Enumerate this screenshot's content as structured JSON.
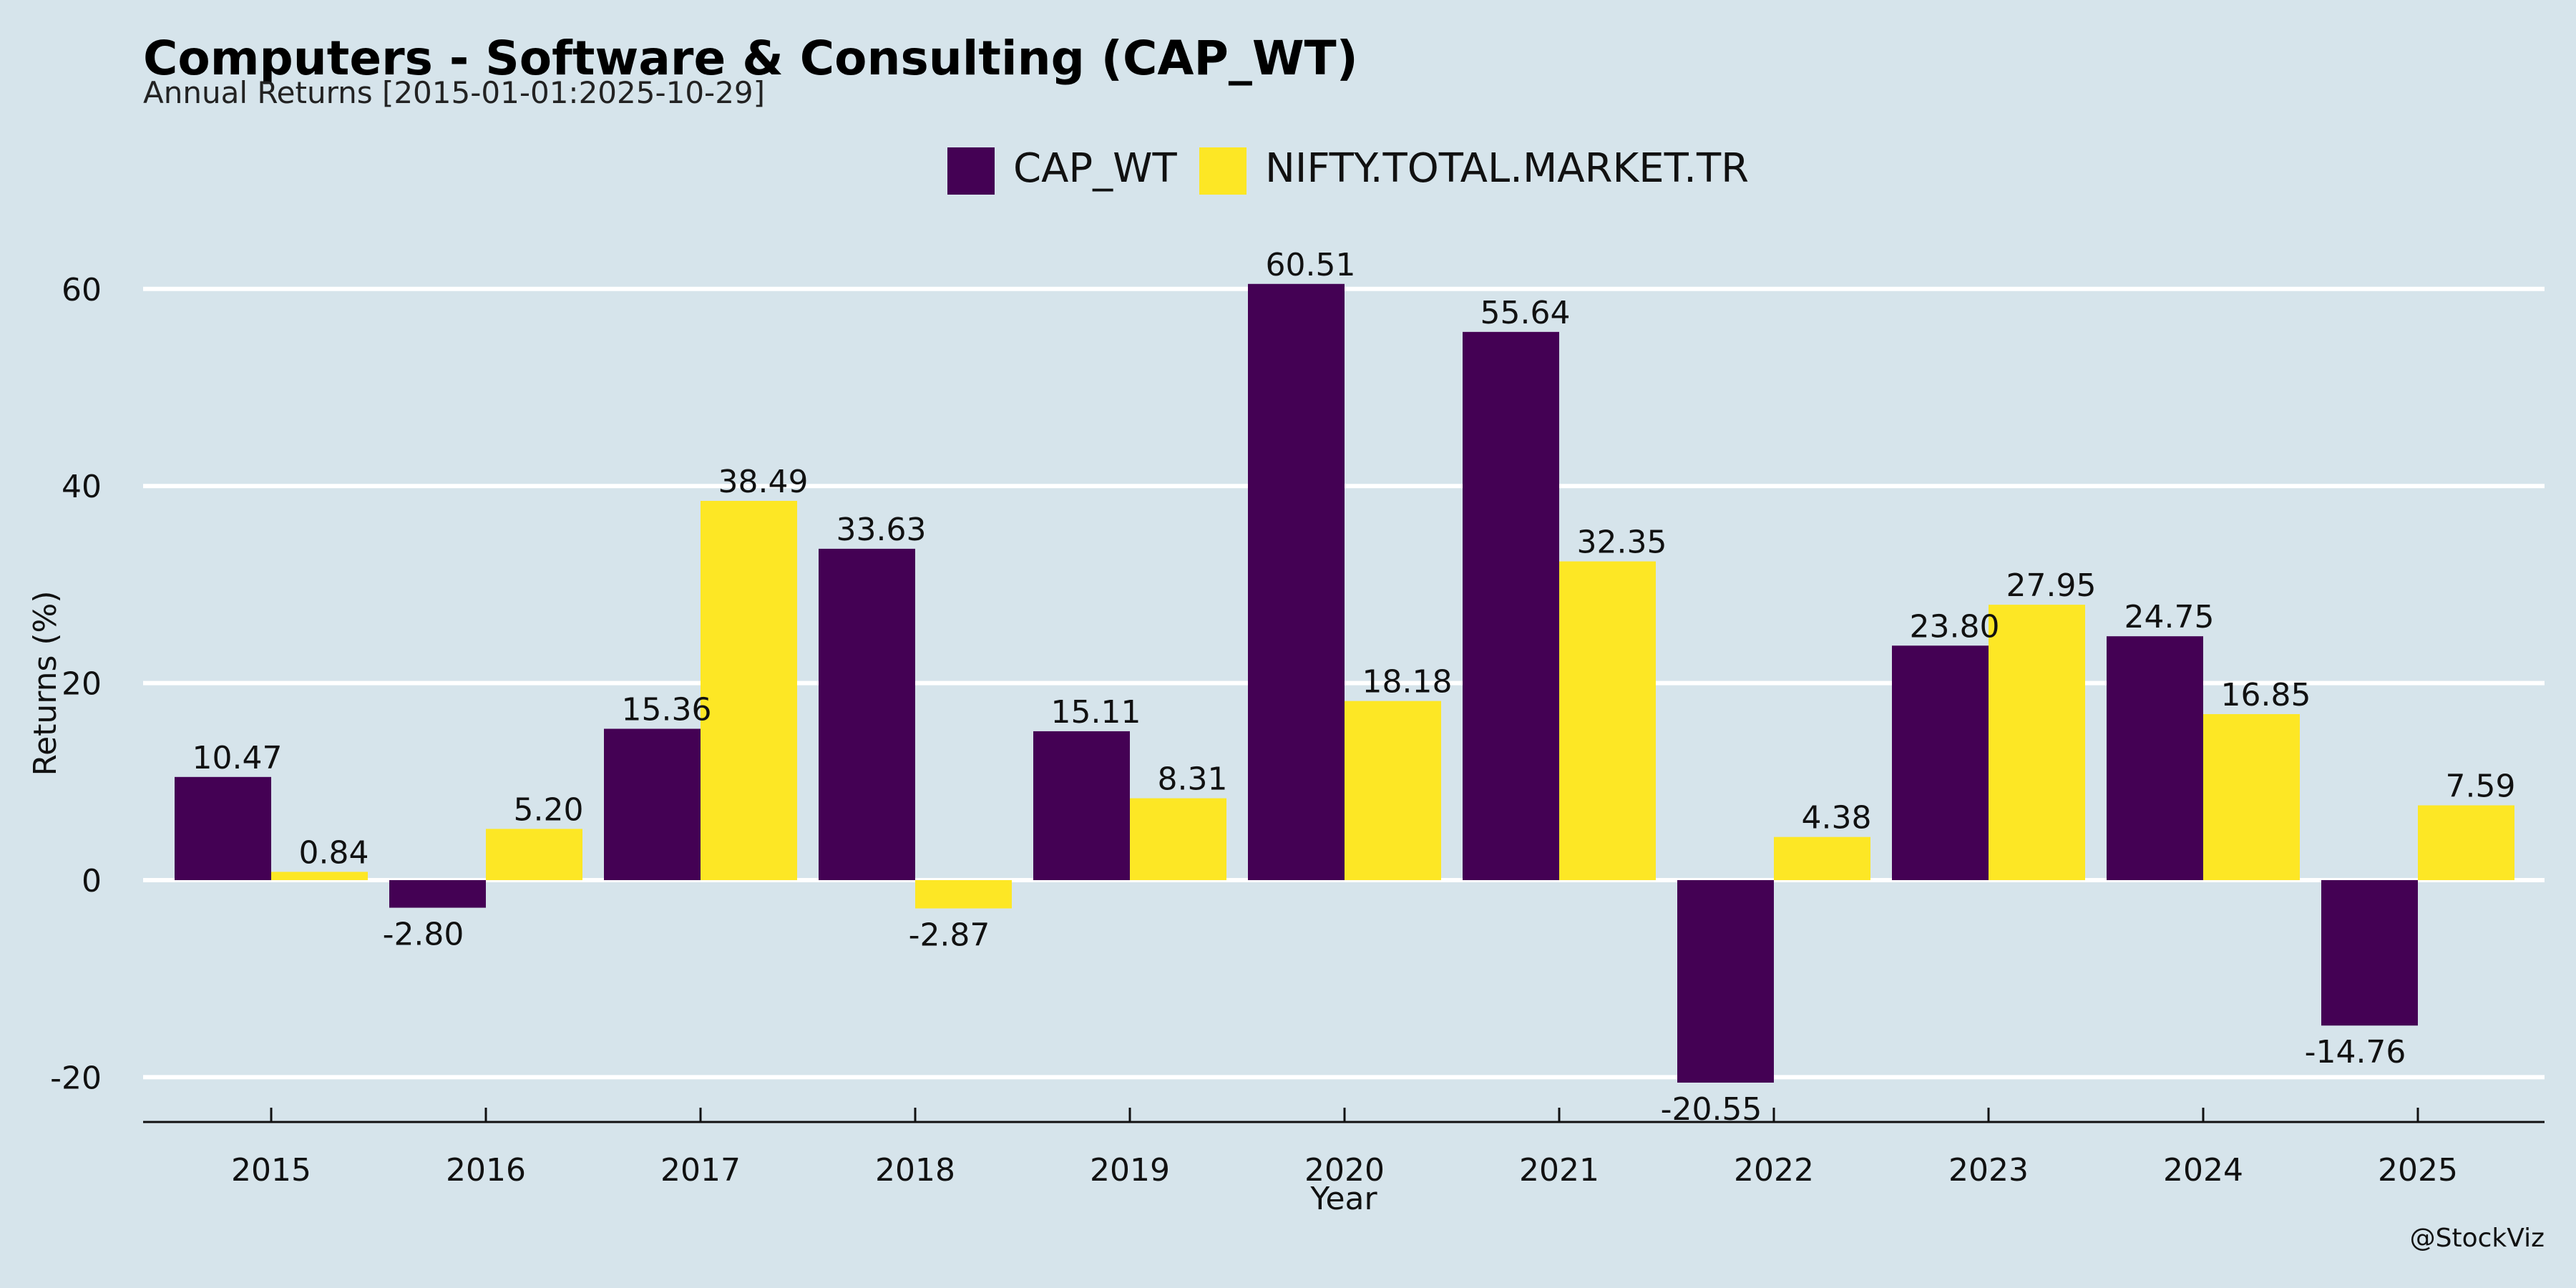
{
  "chart_data": {
    "type": "bar",
    "title": "Computers - Software & Consulting (CAP_WT)",
    "subtitle": "Annual Returns [2015-01-01:2025-10-29]",
    "xlabel": "Year",
    "ylabel": "Returns (%)",
    "categories": [
      "2015",
      "2016",
      "2017",
      "2018",
      "2019",
      "2020",
      "2021",
      "2022",
      "2023",
      "2024",
      "2025"
    ],
    "series": [
      {
        "name": "CAP_WT",
        "color": "#440154",
        "values": [
          10.47,
          -2.8,
          15.36,
          33.63,
          15.11,
          60.51,
          55.64,
          -20.55,
          23.8,
          24.75,
          -14.76
        ]
      },
      {
        "name": "NIFTY.TOTAL.MARKET.TR",
        "color": "#fde725",
        "values": [
          0.84,
          5.2,
          38.49,
          -2.87,
          8.31,
          18.18,
          32.35,
          4.38,
          27.95,
          16.85,
          7.59
        ]
      }
    ],
    "ylim": [
      -24.6,
      74
    ],
    "yticks": [
      -20,
      0,
      20,
      40,
      60
    ],
    "grid": true,
    "legend": "top-center",
    "background": "#d6e4eb",
    "watermark": "@StockViz"
  }
}
